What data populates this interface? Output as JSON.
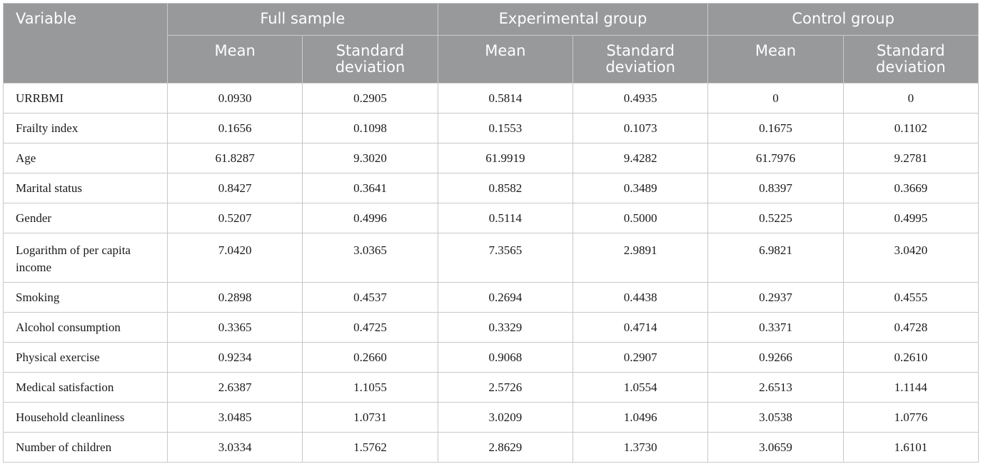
{
  "header": {
    "variable": "Variable",
    "groups": [
      "Full sample",
      "Experimental group",
      "Control group"
    ],
    "mean": "Mean",
    "sd": "Standard deviation"
  },
  "rows": [
    {
      "name": "URRBMI",
      "values": [
        "0.0930",
        "0.2905",
        "0.5814",
        "0.4935",
        "0",
        "0"
      ]
    },
    {
      "name": "Frailty index",
      "values": [
        "0.1656",
        "0.1098",
        "0.1553",
        "0.1073",
        "0.1675",
        "0.1102"
      ]
    },
    {
      "name": "Age",
      "values": [
        "61.8287",
        "9.3020",
        "61.9919",
        "9.4282",
        "61.7976",
        "9.2781"
      ]
    },
    {
      "name": "Marital status",
      "values": [
        "0.8427",
        "0.3641",
        "0.8582",
        "0.3489",
        "0.8397",
        "0.3669"
      ]
    },
    {
      "name": "Gender",
      "values": [
        "0.5207",
        "0.4996",
        "0.5114",
        "0.5000",
        "0.5225",
        "0.4995"
      ]
    },
    {
      "name": "Logarithm of per capita income",
      "values": [
        "7.0420",
        "3.0365",
        "7.3565",
        "2.9891",
        "6.9821",
        "3.0420"
      ]
    },
    {
      "name": "Smoking",
      "values": [
        "0.2898",
        "0.4537",
        "0.2694",
        "0.4438",
        "0.2937",
        "0.4555"
      ]
    },
    {
      "name": "Alcohol consumption",
      "values": [
        "0.3365",
        "0.4725",
        "0.3329",
        "0.4714",
        "0.3371",
        "0.4728"
      ]
    },
    {
      "name": "Physical exercise",
      "values": [
        "0.9234",
        "0.2660",
        "0.9068",
        "0.2907",
        "0.9266",
        "0.2610"
      ]
    },
    {
      "name": "Medical satisfaction",
      "values": [
        "2.6387",
        "1.1055",
        "2.5726",
        "1.0554",
        "2.6513",
        "1.1144"
      ]
    },
    {
      "name": "Household cleanliness",
      "values": [
        "3.0485",
        "1.0731",
        "3.0209",
        "1.0496",
        "3.0538",
        "1.0776"
      ]
    },
    {
      "name": "Number of children",
      "values": [
        "3.0334",
        "1.5762",
        "2.8629",
        "1.3730",
        "3.0659",
        "1.6101"
      ]
    }
  ]
}
